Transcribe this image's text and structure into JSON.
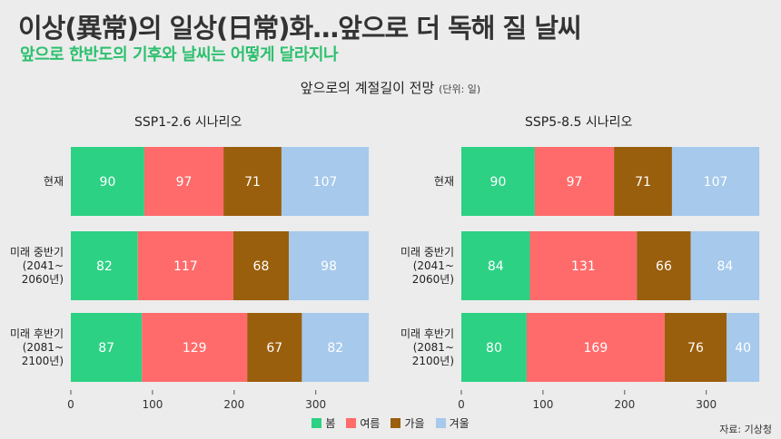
{
  "header": {
    "headline": "이상(異常)의 일상(日常)화…앞으로 더 독해 질 날씨",
    "subheadline": "앞으로 한반도의 기후와 날씨는 어떻게 달라지나",
    "source": "자료: 기상청"
  },
  "colors": {
    "spring": "#2dd184",
    "summer": "#ff6b6b",
    "autumn": "#9a5f0c",
    "winter": "#a6c9ec"
  },
  "chart_data": {
    "type": "bar",
    "orientation": "horizontal-stacked",
    "title": "앞으로의 계절길이 전망",
    "unit_note": "(단위: 일)",
    "xlim": [
      0,
      365
    ],
    "xticks": [
      0,
      100,
      200,
      300
    ],
    "grid": false,
    "legend_position": "bottom",
    "legend": [
      "봄",
      "여름",
      "가을",
      "겨울"
    ],
    "categories": [
      {
        "lines": [
          "현재"
        ]
      },
      {
        "lines": [
          "미래 중반기",
          "(2041~",
          "2060년)"
        ]
      },
      {
        "lines": [
          "미래 후반기",
          "(2081~",
          "2100년)"
        ]
      }
    ],
    "panels": [
      {
        "title": "SSP1-2.6 시나리오",
        "series": [
          {
            "name": "봄",
            "values": [
              90,
              82,
              87
            ]
          },
          {
            "name": "여름",
            "values": [
              97,
              117,
              129
            ]
          },
          {
            "name": "가을",
            "values": [
              71,
              68,
              67
            ]
          },
          {
            "name": "겨울",
            "values": [
              107,
              98,
              82
            ]
          }
        ]
      },
      {
        "title": "SSP5-8.5 시나리오",
        "series": [
          {
            "name": "봄",
            "values": [
              90,
              84,
              80
            ]
          },
          {
            "name": "여름",
            "values": [
              97,
              131,
              169
            ]
          },
          {
            "name": "가을",
            "values": [
              71,
              66,
              76
            ]
          },
          {
            "name": "겨울",
            "values": [
              107,
              84,
              40
            ]
          }
        ]
      }
    ]
  }
}
